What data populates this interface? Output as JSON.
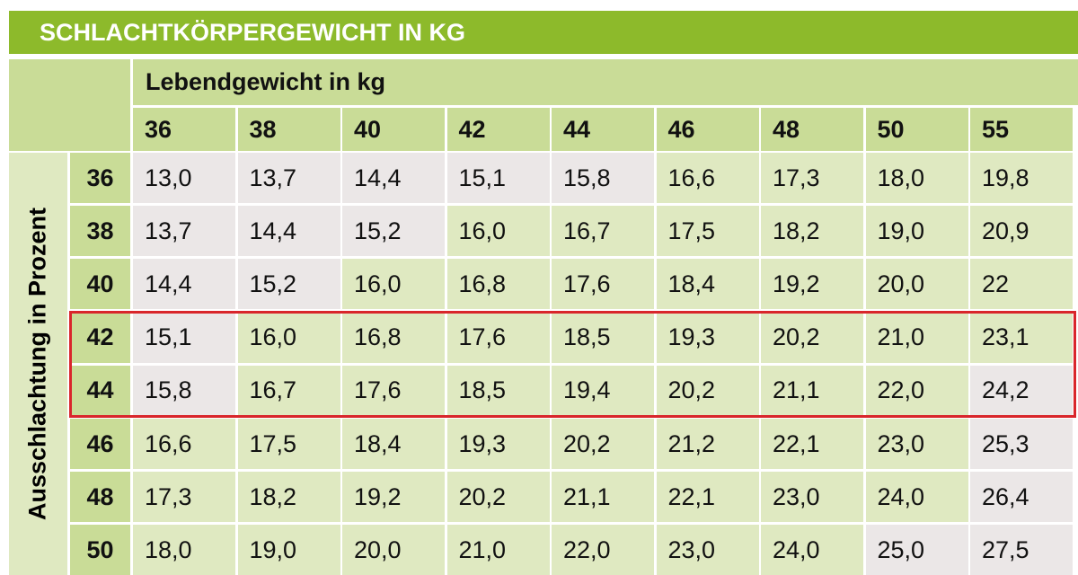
{
  "title": "SCHLACHTKÖRPERGEWICHT IN KG",
  "column_group_label": "Lebendgewicht in kg",
  "row_group_label": "Ausschlachtung in Prozent",
  "columns": [
    "36",
    "38",
    "40",
    "42",
    "44",
    "46",
    "48",
    "50",
    "55"
  ],
  "colors": {
    "title_bar": "#8dba2b",
    "header": "#c9dc97",
    "cell": "#dfe9c1",
    "cell_shaded": "#ebe7e7",
    "highlight": "#d9262b"
  },
  "highlight_rows": [
    3,
    4
  ],
  "rows": [
    {
      "label": "36",
      "values": [
        "13,0",
        "13,7",
        "14,4",
        "15,1",
        "15,8",
        "16,6",
        "17,3",
        "18,0",
        "19,8"
      ],
      "shaded": [
        0,
        1,
        2,
        3,
        4
      ]
    },
    {
      "label": "38",
      "values": [
        "13,7",
        "14,4",
        "15,2",
        "16,0",
        "16,7",
        "17,5",
        "18,2",
        "19,0",
        "20,9"
      ],
      "shaded": [
        0,
        1,
        2
      ]
    },
    {
      "label": "40",
      "values": [
        "14,4",
        "15,2",
        "16,0",
        "16,8",
        "17,6",
        "18,4",
        "19,2",
        "20,0",
        "22"
      ],
      "shaded": [
        0,
        1
      ]
    },
    {
      "label": "42",
      "values": [
        "15,1",
        "16,0",
        "16,8",
        "17,6",
        "18,5",
        "19,3",
        "20,2",
        "21,0",
        "23,1"
      ],
      "shaded": [
        0
      ]
    },
    {
      "label": "44",
      "values": [
        "15,8",
        "16,7",
        "17,6",
        "18,5",
        "19,4",
        "20,2",
        "21,1",
        "22,0",
        "24,2"
      ],
      "shaded": [
        0,
        8
      ]
    },
    {
      "label": "46",
      "values": [
        "16,6",
        "17,5",
        "18,4",
        "19,3",
        "20,2",
        "21,2",
        "22,1",
        "23,0",
        "25,3"
      ],
      "shaded": [
        8
      ]
    },
    {
      "label": "48",
      "values": [
        "17,3",
        "18,2",
        "19,2",
        "20,2",
        "21,1",
        "22,1",
        "23,0",
        "24,0",
        "26,4"
      ],
      "shaded": [
        8
      ]
    },
    {
      "label": "50",
      "values": [
        "18,0",
        "19,0",
        "20,0",
        "21,0",
        "22,0",
        "23,0",
        "24,0",
        "25,0",
        "27,5"
      ],
      "shaded": [
        7,
        8
      ]
    }
  ]
}
